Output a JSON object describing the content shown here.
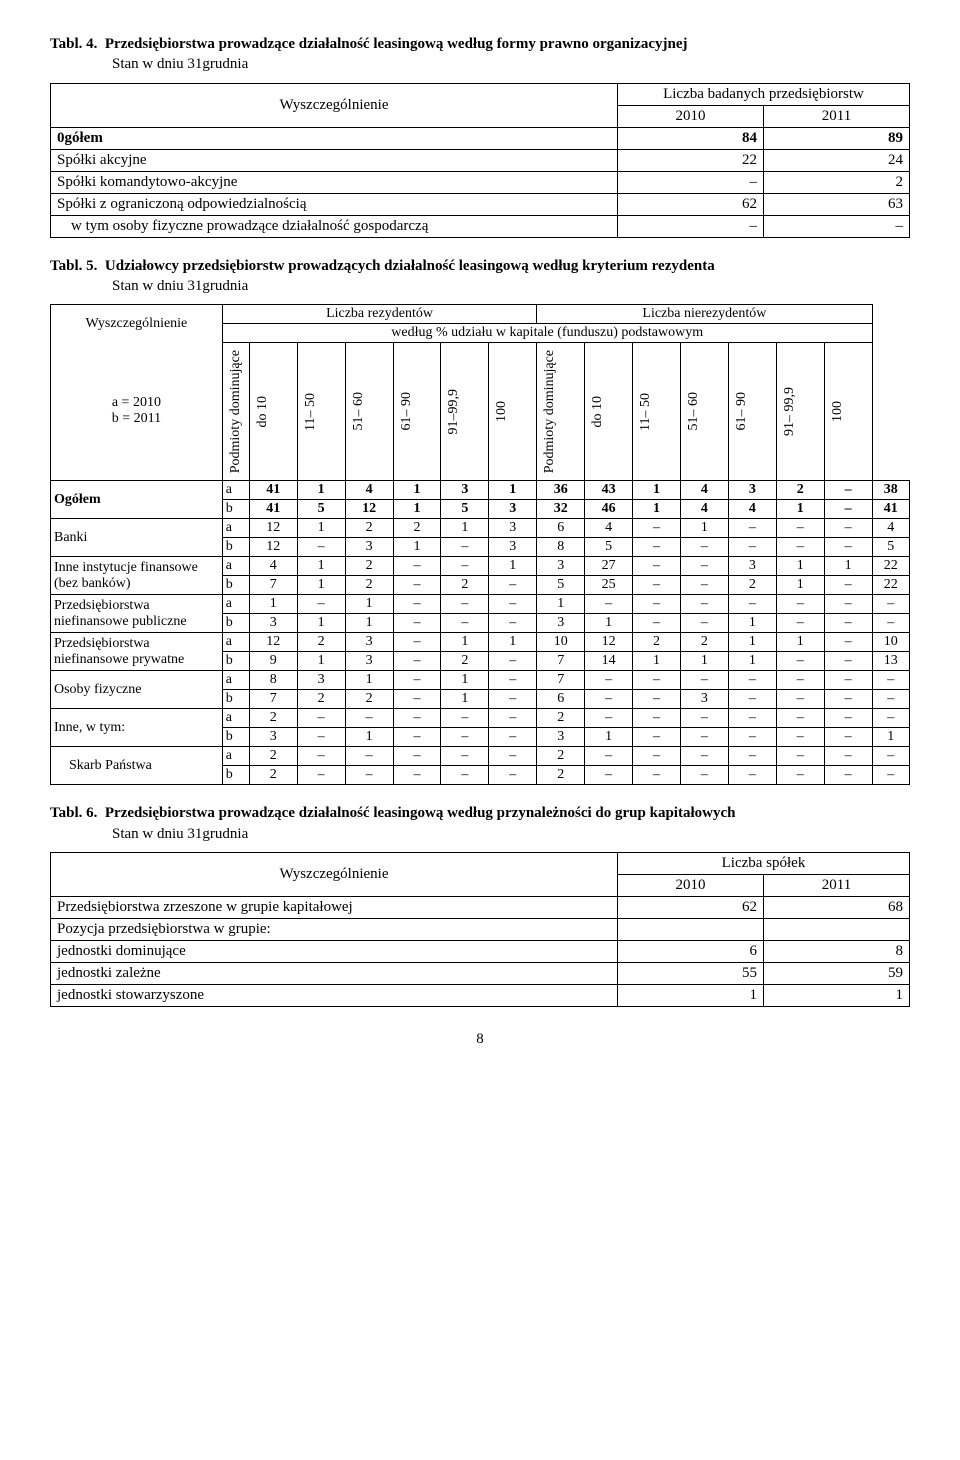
{
  "table4": {
    "title_prefix": "Tabl. 4.",
    "title": "Przedsiębiorstwa prowadzące działalność leasingową według formy prawno organizacyjnej",
    "subtitle": "Stan w dniu 31grudnia",
    "col_wysz": "Wyszczególnienie",
    "col_group": "Liczba badanych przedsiębiorstw",
    "col_y1": "2010",
    "col_y2": "2011",
    "rows": [
      {
        "label": "0gółem",
        "bold": true,
        "y1": "84",
        "y2": "89"
      },
      {
        "label": "Spółki akcyjne",
        "y1": "22",
        "y2": "24"
      },
      {
        "label": "Spółki komandytowo-akcyjne",
        "y1": "–",
        "y2": "2"
      },
      {
        "label": "Spółki z ograniczoną odpowiedzialnością",
        "y1": "62",
        "y2": "63"
      },
      {
        "label": "  w tym osoby fizyczne prowadzące działalność gospodarczą",
        "y1": "–",
        "y2": "–"
      }
    ]
  },
  "table5": {
    "title_prefix": "Tabl. 5.",
    "title": "Udziałowcy przedsiębiorstw prowadzących działalność leasingową według kryterium rezydenta",
    "subtitle": "Stan w dniu 31grudnia",
    "col_wysz": "Wyszczególnienie",
    "col_ab": "a = 2010\nb = 2011",
    "head_res": "Liczba rezydentów",
    "head_nonres": "Liczba nierezydentów",
    "head_share": "według % udziału w kapitale (funduszu) podstawowym",
    "subcols": [
      "Podmioty dominujące",
      "do 10",
      "11– 50",
      "51– 60",
      "61– 90",
      "91–99,9",
      "100",
      "Podmioty dominujące",
      "do 10",
      "11– 50",
      "51– 60",
      "61– 90",
      "91– 99,9",
      "100"
    ],
    "rows": [
      {
        "label": "Ogółem",
        "bold": true,
        "a": [
          "41",
          "1",
          "4",
          "1",
          "3",
          "1",
          "36",
          "43",
          "1",
          "4",
          "3",
          "2",
          "–",
          "38"
        ],
        "b": [
          "41",
          "5",
          "12",
          "1",
          "5",
          "3",
          "32",
          "46",
          "1",
          "4",
          "4",
          "1",
          "–",
          "41"
        ]
      },
      {
        "label": "Banki",
        "a": [
          "12",
          "1",
          "2",
          "2",
          "1",
          "3",
          "6",
          "4",
          "–",
          "1",
          "–",
          "–",
          "–",
          "4"
        ],
        "b": [
          "12",
          "–",
          "3",
          "1",
          "–",
          "3",
          "8",
          "5",
          "–",
          "–",
          "–",
          "–",
          "–",
          "5"
        ]
      },
      {
        "label": "Inne instytucje finansowe (bez banków)",
        "a": [
          "4",
          "1",
          "2",
          "–",
          "–",
          "1",
          "3",
          "27",
          "–",
          "–",
          "3",
          "1",
          "1",
          "22"
        ],
        "b": [
          "7",
          "1",
          "2",
          "–",
          "2",
          "–",
          "5",
          "25",
          "–",
          "–",
          "2",
          "1",
          "–",
          "22"
        ]
      },
      {
        "label": "Przedsiębiorstwa niefinansowe publiczne",
        "a": [
          "1",
          "–",
          "1",
          "–",
          "–",
          "–",
          "1",
          "–",
          "–",
          "–",
          "–",
          "–",
          "–",
          "–"
        ],
        "b": [
          "3",
          "1",
          "1",
          "–",
          "–",
          "–",
          "3",
          "1",
          "–",
          "–",
          "1",
          "–",
          "–",
          "–"
        ]
      },
      {
        "label": "Przedsiębiorstwa niefinansowe prywatne",
        "a": [
          "12",
          "2",
          "3",
          "–",
          "1",
          "1",
          "10",
          "12",
          "2",
          "2",
          "1",
          "1",
          "–",
          "10"
        ],
        "b": [
          "9",
          "1",
          "3",
          "–",
          "2",
          "–",
          "7",
          "14",
          "1",
          "1",
          "1",
          "–",
          "–",
          "13"
        ]
      },
      {
        "label": "Osoby fizyczne",
        "a": [
          "8",
          "3",
          "1",
          "–",
          "1",
          "–",
          "7",
          "–",
          "–",
          "–",
          "–",
          "–",
          "–",
          "–"
        ],
        "b": [
          "7",
          "2",
          "2",
          "–",
          "1",
          "–",
          "6",
          "–",
          "–",
          "3",
          "–",
          "–",
          "–",
          "–"
        ]
      },
      {
        "label": "Inne, w tym:",
        "a": [
          "2",
          "–",
          "–",
          "–",
          "–",
          "–",
          "2",
          "–",
          "–",
          "–",
          "–",
          "–",
          "–",
          "–"
        ],
        "b": [
          "3",
          "–",
          "1",
          "–",
          "–",
          "–",
          "3",
          "1",
          "–",
          "–",
          "–",
          "–",
          "–",
          "1"
        ]
      },
      {
        "label": "  Skarb Państwa",
        "a": [
          "2",
          "–",
          "–",
          "–",
          "–",
          "–",
          "2",
          "–",
          "–",
          "–",
          "–",
          "–",
          "–",
          "–"
        ],
        "b": [
          "2",
          "–",
          "–",
          "–",
          "–",
          "–",
          "2",
          "–",
          "–",
          "–",
          "–",
          "–",
          "–",
          "–"
        ]
      }
    ]
  },
  "table6": {
    "title_prefix": "Tabl. 6.",
    "title": "Przedsiębiorstwa prowadzące działalność leasingową według przynależności do grup kapitałowych",
    "subtitle": "Stan w dniu 31grudnia",
    "col_wysz": "Wyszczególnienie",
    "col_group": "Liczba spółek",
    "col_y1": "2010",
    "col_y2": "2011",
    "rows": [
      {
        "label": "Przedsiębiorstwa zrzeszone w grupie kapitałowej",
        "y1": "62",
        "y2": "68"
      },
      {
        "label": "Pozycja przedsiębiorstwa w grupie:",
        "y1": "",
        "y2": ""
      },
      {
        "label": "jednostki dominujące",
        "indent": true,
        "y1": "6",
        "y2": "8"
      },
      {
        "label": "jednostki zależne",
        "indent": true,
        "y1": "55",
        "y2": "59"
      },
      {
        "label": "jednostki stowarzyszone",
        "indent": true,
        "y1": "1",
        "y2": "1"
      }
    ]
  },
  "page_number": "8"
}
